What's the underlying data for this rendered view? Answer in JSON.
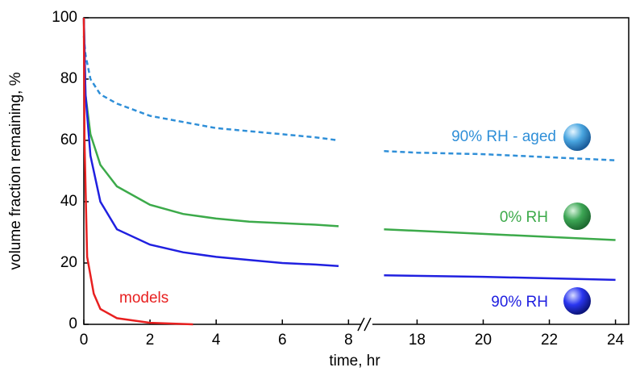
{
  "chart_data": {
    "type": "line",
    "xlabel": "time, hr",
    "ylabel": "volume fraction remaining, %",
    "xlim": [
      [
        0,
        8.6
      ],
      [
        16.6,
        24.4
      ]
    ],
    "xticks": [
      0,
      2,
      4,
      6,
      8,
      18,
      20,
      22,
      24
    ],
    "ylim": [
      0,
      100
    ],
    "yticks": [
      0,
      20,
      40,
      60,
      80,
      100
    ],
    "series": [
      {
        "name": "90% RH - aged",
        "color": "#2f8fd8",
        "dashed": true,
        "x": [
          0,
          0.05,
          0.2,
          0.5,
          1,
          2,
          3,
          4,
          5,
          6,
          7,
          7.7,
          null,
          17,
          18,
          20,
          22,
          24
        ],
        "values": [
          94,
          88,
          80,
          75,
          72,
          68,
          66,
          64,
          63,
          62,
          61,
          60,
          null,
          56.5,
          56,
          55.5,
          54.5,
          53.5
        ]
      },
      {
        "name": "0% RH",
        "color": "#3caa4a",
        "dashed": false,
        "x": [
          0,
          0.05,
          0.2,
          0.5,
          1,
          2,
          3,
          4,
          5,
          6,
          7,
          7.7,
          null,
          17,
          20,
          24
        ],
        "values": [
          100,
          75,
          62,
          52,
          45,
          39,
          36,
          34.5,
          33.5,
          33,
          32.5,
          32,
          null,
          31,
          29.5,
          27.5
        ]
      },
      {
        "name": "90% RH",
        "color": "#2020e0",
        "dashed": false,
        "x": [
          0,
          0.05,
          0.2,
          0.5,
          1,
          2,
          3,
          4,
          5,
          6,
          7,
          7.7,
          null,
          17,
          20,
          24
        ],
        "values": [
          100,
          75,
          55,
          40,
          31,
          26,
          23.5,
          22,
          21,
          20,
          19.5,
          19,
          null,
          16,
          15.5,
          14.5
        ]
      },
      {
        "name": "models",
        "color": "#e82020",
        "dashed": false,
        "x": [
          0,
          0.02,
          0.1,
          0.3,
          0.5,
          1,
          2,
          3.3
        ],
        "values": [
          100,
          60,
          22,
          10,
          5,
          2,
          0.5,
          0
        ]
      }
    ]
  }
}
